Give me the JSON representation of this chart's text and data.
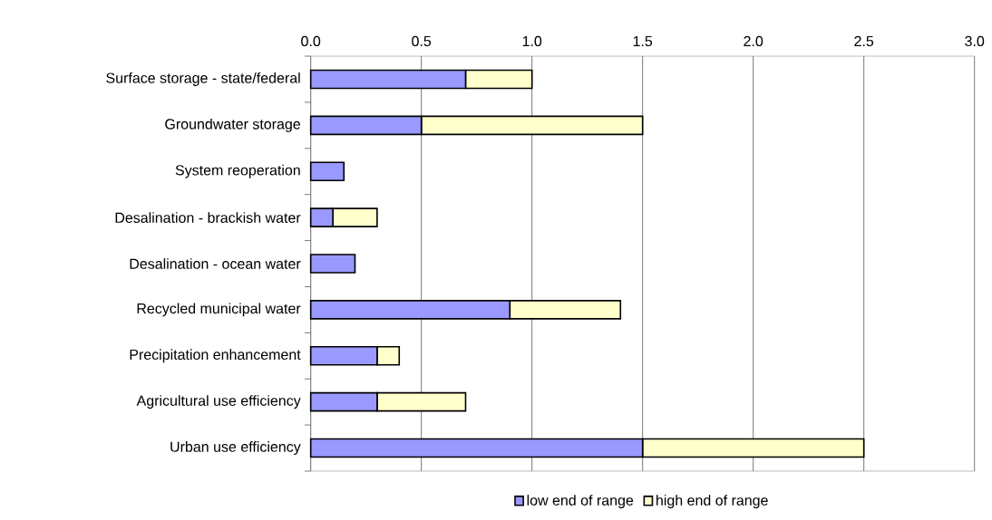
{
  "chart_data": {
    "type": "bar",
    "orientation": "horizontal",
    "stacked": true,
    "categories": [
      "Surface storage - state/federal",
      "Groundwater storage",
      "System reoperation",
      "Desalination - brackish water",
      "Desalination - ocean water",
      "Recycled municipal water",
      "Precipitation enhancement",
      "Agricultural use efficiency",
      "Urban use efficiency"
    ],
    "series": [
      {
        "name": "low end of range",
        "color": "#9999ff",
        "values": [
          0.7,
          0.5,
          0.15,
          0.1,
          0.2,
          0.9,
          0.3,
          0.3,
          1.5
        ]
      },
      {
        "name": "high end of range",
        "color": "#ffffcc",
        "values": [
          0.3,
          1.0,
          0,
          0.2,
          0,
          0.5,
          0.1,
          0.4,
          1.0
        ]
      }
    ],
    "xlim": [
      0,
      3
    ],
    "xticks": [
      {
        "value": 0,
        "label": "0.0"
      },
      {
        "value": 0.5,
        "label": "0.5"
      },
      {
        "value": 1,
        "label": "1.0"
      },
      {
        "value": 1.5,
        "label": "1.5"
      },
      {
        "value": 2,
        "label": "2.0"
      },
      {
        "value": 2.5,
        "label": "2.5"
      },
      {
        "value": 3,
        "label": "3.0"
      }
    ],
    "grid": "x",
    "legend": "bottom"
  }
}
